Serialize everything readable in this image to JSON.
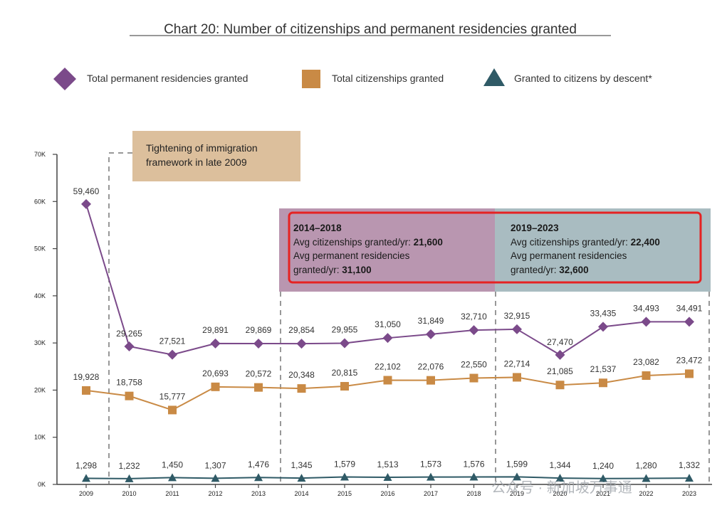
{
  "chart_data": {
    "type": "line",
    "title": "Chart 20: Number of citizenships and permanent residencies granted",
    "xlabel": "",
    "ylabel": "",
    "ylim": [
      0,
      70000
    ],
    "y_ticks": [
      "0K",
      "10K",
      "20K",
      "30K",
      "40K",
      "50K",
      "60K",
      "70K"
    ],
    "categories": [
      "2009",
      "2010",
      "2011",
      "2012",
      "2013",
      "2014",
      "2015",
      "2016",
      "2017",
      "2018",
      "2019",
      "2020",
      "2021",
      "2022",
      "2023"
    ],
    "series": [
      {
        "name": "Total permanent residencies granted",
        "color": "#7b4a8a",
        "marker": "diamond",
        "values": [
          59460,
          29265,
          27521,
          29891,
          29869,
          29854,
          29955,
          31050,
          31849,
          32710,
          32915,
          27470,
          33435,
          34493,
          34491
        ],
        "labels": [
          "59,460",
          "29,265",
          "27,521",
          "29,891",
          "29,869",
          "29,854",
          "29,955",
          "31,050",
          "31,849",
          "32,710",
          "32,915",
          "27,470",
          "33,435",
          "34,493",
          "34,491"
        ]
      },
      {
        "name": "Total citizenships granted",
        "color": "#c98a45",
        "marker": "square",
        "values": [
          19928,
          18758,
          15777,
          20693,
          20572,
          20348,
          20815,
          22102,
          22076,
          22550,
          22714,
          21085,
          21537,
          23082,
          23472
        ],
        "labels": [
          "19,928",
          "18,758",
          "15,777",
          "20,693",
          "20,572",
          "20,348",
          "20,815",
          "22,102",
          "22,076",
          "22,550",
          "22,714",
          "21,085",
          "21,537",
          "23,082",
          "23,472"
        ]
      },
      {
        "name": "Granted to citizens by descent*",
        "color": "#2f5a66",
        "marker": "triangle",
        "values": [
          1298,
          1232,
          1450,
          1307,
          1476,
          1345,
          1579,
          1513,
          1573,
          1576,
          1599,
          1344,
          1240,
          1280,
          1332
        ],
        "labels": [
          "1,298",
          "1,232",
          "1,450",
          "1,307",
          "1,476",
          "1,345",
          "1,579",
          "1,513",
          "1,573",
          "1,576",
          "1,599",
          "1,344",
          "1,240",
          "1,280",
          "1,332"
        ]
      }
    ],
    "annotations": {
      "tightening": [
        "Tightening of immigration",
        "framework in late 2009"
      ],
      "period1": {
        "heading": "2014–2018",
        "line1_prefix": "Avg citizenships granted/yr: ",
        "line1_value": "21,600",
        "line2": "Avg permanent residencies",
        "line3_prefix": "granted/yr: ",
        "line3_value": "31,100"
      },
      "period2": {
        "heading": "2019–2023",
        "line1_prefix": "Avg citizenships granted/yr: ",
        "line1_value": "22,400",
        "line2": "Avg permanent residencies",
        "line3_prefix": "granted/yr: ",
        "line3_value": "32,600"
      }
    }
  },
  "watermark": "公众号 · 新加坡万事通",
  "colors": {
    "tightening_box": "#dcbf9c",
    "period1_box": "#b996b0",
    "period2_box": "#a9bcc1",
    "highlight": "#e52222",
    "axis": "#444444",
    "dash": "#777777"
  }
}
